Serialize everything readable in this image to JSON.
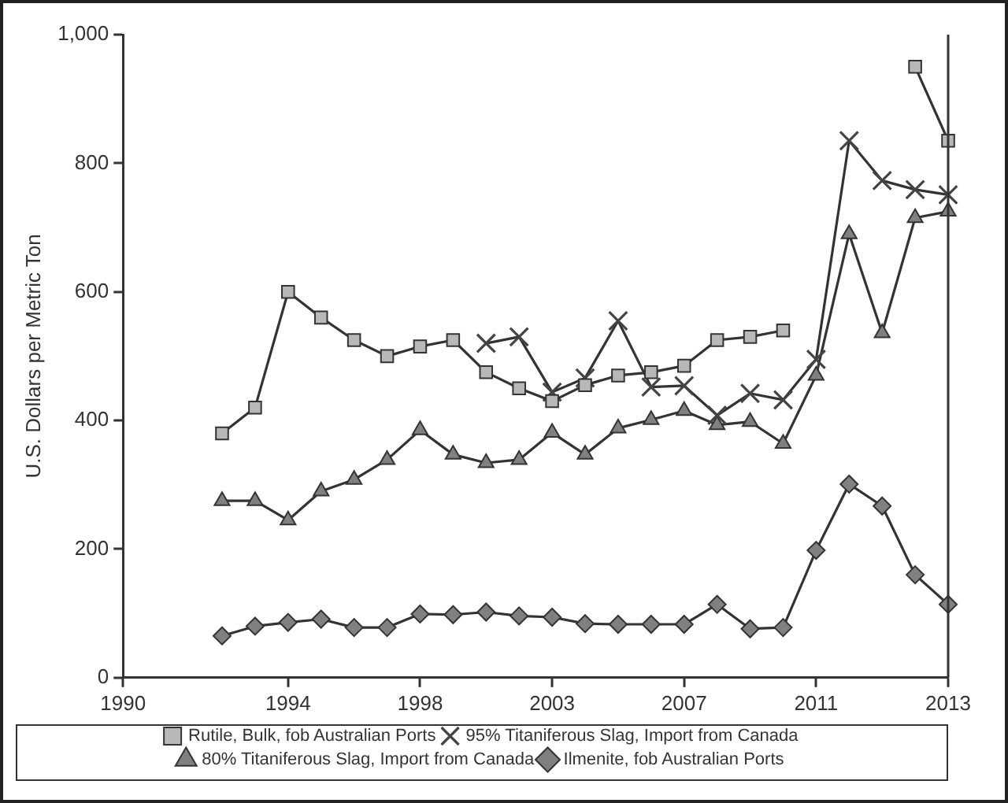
{
  "chart_data": {
    "type": "line",
    "ylabel": "U.S. Dollars per Metric Ton",
    "categories": [
      "1990",
      null,
      null,
      null,
      null,
      "1994",
      null,
      null,
      null,
      "1998",
      null,
      null,
      null,
      "2003",
      null,
      null,
      null,
      "2007",
      null,
      null,
      null,
      "2011",
      null,
      null,
      null,
      "2013"
    ],
    "ylim": [
      0,
      1000
    ],
    "yticks": [
      0,
      200,
      400,
      600,
      800,
      {
        "value": 1000,
        "label": "1,000"
      }
    ],
    "grid": false,
    "legend": "bottom",
    "line_style": "solid",
    "series": [
      {
        "name": "Rutile, Bulk, fob Australian Ports",
        "color": "#b8b8b8",
        "marker": "square",
        "values": [
          null,
          null,
          null,
          380,
          420,
          600,
          560,
          525,
          500,
          515,
          525,
          475,
          450,
          430,
          455,
          470,
          475,
          485,
          525,
          530,
          540,
          null,
          null,
          null,
          950,
          835
        ]
      },
      {
        "name": "95% Titaniferous Slag, Import from Canada",
        "color": "#444444",
        "marker": "cross",
        "values": [
          null,
          null,
          null,
          null,
          null,
          null,
          null,
          null,
          null,
          null,
          null,
          520,
          530,
          444,
          466,
          555,
          452,
          454,
          408,
          442,
          432,
          495,
          835,
          773,
          759,
          751
        ]
      },
      {
        "name": "80% Titaniferous Slag, Import from Canada",
        "color": "#808080",
        "marker": "triangle",
        "values": [
          null,
          null,
          null,
          275,
          275,
          245,
          290,
          308,
          339,
          385,
          347,
          334,
          339,
          381,
          347,
          388,
          401,
          415,
          393,
          398,
          364,
          470,
          690,
          536,
          715,
          725
        ]
      },
      {
        "name": "Ilmenite, fob Australian Ports",
        "color": "#808080",
        "marker": "diamond",
        "values": [
          null,
          null,
          null,
          65,
          80,
          86,
          91,
          78,
          78,
          99,
          98,
          102,
          96,
          94,
          84,
          83,
          83,
          83,
          114,
          76,
          78,
          198,
          301,
          267,
          160,
          114
        ]
      }
    ]
  }
}
